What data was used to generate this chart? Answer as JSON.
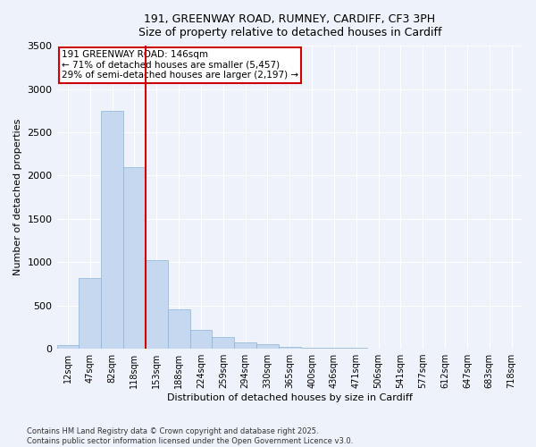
{
  "title_line1": "191, GREENWAY ROAD, RUMNEY, CARDIFF, CF3 3PH",
  "title_line2": "Size of property relative to detached houses in Cardiff",
  "xlabel": "Distribution of detached houses by size in Cardiff",
  "ylabel": "Number of detached properties",
  "annotation_line1": "191 GREENWAY ROAD: 146sqm",
  "annotation_line2": "← 71% of detached houses are smaller (5,457)",
  "annotation_line3": "29% of semi-detached houses are larger (2,197) →",
  "bar_color": "#c5d8f0",
  "bar_edge_color": "#8ab4d8",
  "marker_line_color": "#cc0000",
  "background_color": "#eef2fa",
  "grid_color": "#ffffff",
  "categories": [
    "12sqm",
    "47sqm",
    "82sqm",
    "118sqm",
    "153sqm",
    "188sqm",
    "224sqm",
    "259sqm",
    "294sqm",
    "330sqm",
    "365sqm",
    "400sqm",
    "436sqm",
    "471sqm",
    "506sqm",
    "541sqm",
    "577sqm",
    "612sqm",
    "647sqm",
    "683sqm",
    "718sqm"
  ],
  "values": [
    40,
    820,
    2750,
    2100,
    1020,
    460,
    220,
    130,
    75,
    50,
    25,
    15,
    10,
    7,
    5,
    4,
    3,
    2,
    2,
    2,
    2
  ],
  "marker_bar_index": 3,
  "ylim": [
    0,
    3500
  ],
  "yticks": [
    0,
    500,
    1000,
    1500,
    2000,
    2500,
    3000,
    3500
  ],
  "footnote_line1": "Contains HM Land Registry data © Crown copyright and database right 2025.",
  "footnote_line2": "Contains public sector information licensed under the Open Government Licence v3.0."
}
